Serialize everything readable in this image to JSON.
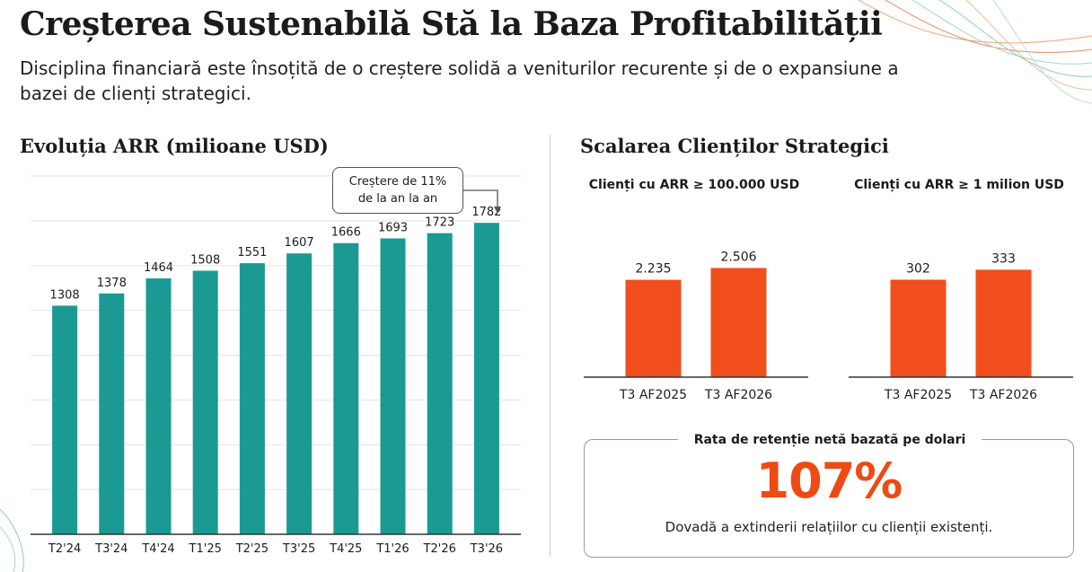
{
  "header": {
    "title": "Creșterea Sustenabilă Stă la Baza Profitabilității",
    "subtitle": "Disciplina financiară este însoțită de o creștere solidă a veniturilor recurente și de o expansiune a bazei de clienți strategici."
  },
  "colors": {
    "teal": "#1a9a93",
    "orange": "#f04e1c",
    "accent_text": "#ee4a13"
  },
  "arr_section": {
    "title": "Evoluția ARR (milioane USD)",
    "callout": {
      "line1": "Creștere de 11%",
      "line2": "de la an la an"
    }
  },
  "clients_section": {
    "title": "Scalarea Clienților Strategici",
    "nrr": {
      "label": "Rata de retenție netă bazată pe dolari",
      "value": "107%",
      "caption": "Dovadă a extinderii relațiilor cu clienții existenți."
    }
  },
  "chart_data": [
    {
      "id": "arr",
      "type": "bar",
      "title": "Evoluția ARR (milioane USD)",
      "categories": [
        "T2'24",
        "T3'24",
        "T4'24",
        "T1'25",
        "T2'25",
        "T3'25",
        "T4'25",
        "T1'26",
        "T2'26",
        "T3'26"
      ],
      "values": [
        1308,
        1378,
        1464,
        1508,
        1551,
        1607,
        1666,
        1693,
        1723,
        1782
      ],
      "labels": [
        "1308",
        "1378",
        "1464",
        "1508",
        "1551",
        "1607",
        "1666",
        "1693",
        "1723",
        "1782"
      ],
      "ylim": [
        0,
        2050
      ],
      "grid": true,
      "color": "#1a9a93"
    },
    {
      "id": "clients100k",
      "type": "bar",
      "title": "Clienți cu ARR ≥ 100.000 USD",
      "categories": [
        "T3 AF2025",
        "T3 AF2026"
      ],
      "values": [
        2235,
        2506
      ],
      "labels": [
        "2.235",
        "2.506"
      ],
      "ylim": [
        0,
        4000
      ],
      "grid": false,
      "color": "#f04e1c"
    },
    {
      "id": "clients1m",
      "type": "bar",
      "title": "Clienți cu ARR ≥ 1 milion USD",
      "categories": [
        "T3 AF2025",
        "T3 AF2026"
      ],
      "values": [
        302,
        333
      ],
      "labels": [
        "302",
        "333"
      ],
      "ylim": [
        0,
        540
      ],
      "grid": false,
      "color": "#f04e1c"
    }
  ]
}
